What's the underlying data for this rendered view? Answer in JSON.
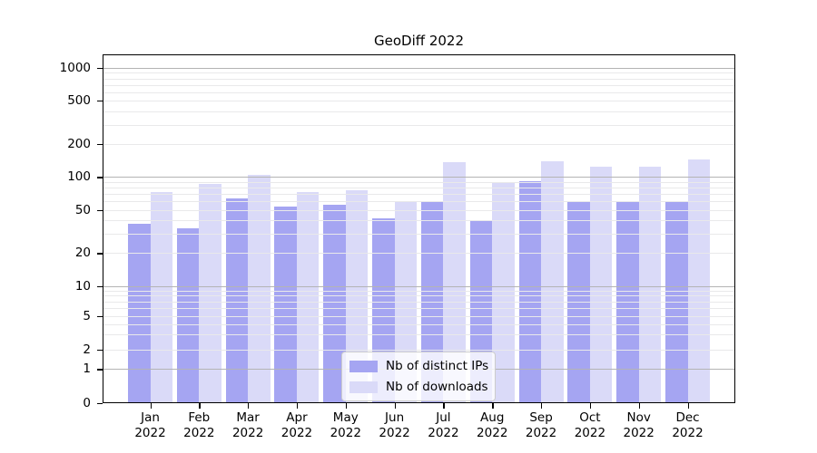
{
  "title": "GeoDiff 2022",
  "colors": {
    "ips_bar": "#a5a5f2",
    "downloads_bar": "#dadaf8",
    "major_grid": "#b4b4b4",
    "minor_grid": "#e9e9ea",
    "axis": "#000000"
  },
  "legend": {
    "items": [
      "Nb of distinct IPs",
      "Nb of downloads"
    ]
  },
  "chart_data": {
    "type": "bar",
    "title": "GeoDiff 2022",
    "categories": [
      "Jan 2022",
      "Feb 2022",
      "Mar 2022",
      "Apr 2022",
      "May 2022",
      "Jun 2022",
      "Jul 2022",
      "Aug 2022",
      "Sep 2022",
      "Oct 2022",
      "Nov 2022",
      "Dec 2022"
    ],
    "series": [
      {
        "name": "Nb of distinct IPs",
        "color_key": "ips_bar",
        "values": [
          37,
          34,
          63,
          54,
          56,
          42,
          59,
          40,
          91,
          59,
          60,
          60
        ]
      },
      {
        "name": "Nb of downloads",
        "color_key": "downloads_bar",
        "values": [
          72,
          86,
          105,
          73,
          76,
          60,
          136,
          90,
          140,
          125,
          123,
          144
        ]
      }
    ],
    "xlabel": "",
    "ylabel": "",
    "yscale": "symlog",
    "yticks": [
      0,
      1,
      2,
      5,
      10,
      20,
      50,
      100,
      200,
      500,
      1000
    ],
    "ylim": [
      0,
      1300
    ],
    "grid": true,
    "grid_above_bars": true,
    "legend_position": "lower center"
  }
}
